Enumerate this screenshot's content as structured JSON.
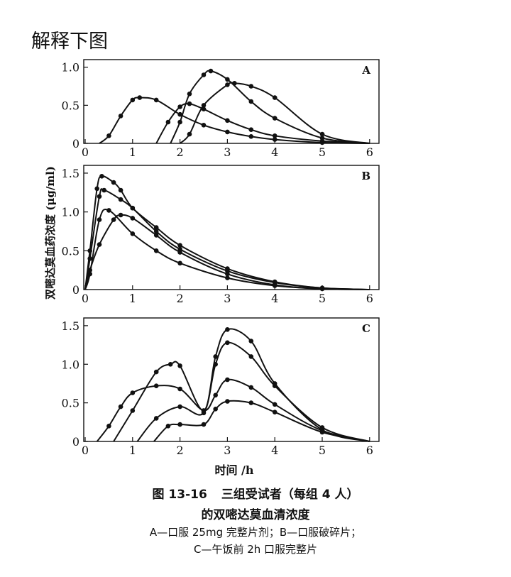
{
  "question": "解释下图",
  "caption": {
    "figure_number": "图 13-16",
    "title_line1": "三组受试者（每组 4 人）",
    "title_line2": "的双嘧达莫血清浓度",
    "legend_line1": "A—口服 25mg 完整片剂；B—口服破碎片；",
    "legend_line2": "C—午饭前 2h 口服完整片"
  },
  "chart_data": {
    "type": "line",
    "ylabel": "双嘧达莫血药浓度 (μg/ml)",
    "xlabel": "时间 /h",
    "x_ticks": [
      "0",
      "1",
      "2",
      "3",
      "4",
      "5",
      "6"
    ],
    "panels": [
      {
        "label": "A",
        "xlim": [
          0,
          6
        ],
        "ylim": [
          0,
          1.1
        ],
        "y_ticks": [
          "0",
          "0.5",
          "1.0"
        ],
        "series": [
          {
            "x": [
              0.3,
              0.5,
              0.75,
              1.0,
              1.15,
              1.5,
              2.0,
              2.5,
              3.0,
              3.5,
              4.0,
              5.0,
              6.0
            ],
            "y": [
              0,
              0.1,
              0.36,
              0.57,
              0.6,
              0.57,
              0.38,
              0.24,
              0.15,
              0.09,
              0.05,
              0.01,
              0
            ]
          },
          {
            "x": [
              1.5,
              1.75,
              2.0,
              2.2,
              2.5,
              3.0,
              3.5,
              4.0,
              5.0,
              6.0
            ],
            "y": [
              0,
              0.28,
              0.48,
              0.52,
              0.45,
              0.3,
              0.18,
              0.1,
              0.03,
              0
            ]
          },
          {
            "x": [
              1.8,
              2.0,
              2.2,
              2.5,
              2.65,
              3.0,
              3.5,
              4.0,
              5.0,
              6.0
            ],
            "y": [
              0,
              0.28,
              0.65,
              0.9,
              0.95,
              0.84,
              0.55,
              0.33,
              0.07,
              0
            ]
          },
          {
            "x": [
              2.0,
              2.2,
              2.5,
              3.0,
              3.15,
              3.5,
              4.0,
              5.0,
              6.0
            ],
            "y": [
              0,
              0.12,
              0.5,
              0.77,
              0.79,
              0.75,
              0.6,
              0.12,
              0
            ]
          }
        ]
      },
      {
        "label": "B",
        "xlim": [
          0,
          6
        ],
        "ylim": [
          0,
          1.6
        ],
        "y_ticks": [
          "0",
          "0.5",
          "1.0",
          "1.5"
        ],
        "series": [
          {
            "x": [
              0,
              0.1,
              0.25,
              0.35,
              0.6,
              0.75,
              1.0,
              1.5,
              2.0,
              3.0,
              4.0,
              5.0,
              6.0
            ],
            "y": [
              0,
              0.5,
              1.3,
              1.46,
              1.38,
              1.28,
              1.05,
              0.8,
              0.57,
              0.27,
              0.1,
              0.02,
              0
            ]
          },
          {
            "x": [
              0,
              0.1,
              0.3,
              0.4,
              0.75,
              1.0,
              1.5,
              2.0,
              3.0,
              4.0,
              5.0,
              6.0
            ],
            "y": [
              0,
              0.4,
              1.2,
              1.28,
              1.16,
              1.05,
              0.75,
              0.52,
              0.24,
              0.09,
              0.02,
              0
            ]
          },
          {
            "x": [
              0,
              0.1,
              0.3,
              0.5,
              1.0,
              1.5,
              2.0,
              3.0,
              4.0,
              5.0,
              6.0
            ],
            "y": [
              0,
              0.2,
              0.9,
              1.02,
              0.72,
              0.5,
              0.34,
              0.15,
              0.05,
              0.01,
              0
            ]
          },
          {
            "x": [
              0,
              0.1,
              0.3,
              0.6,
              0.75,
              1.0,
              1.5,
              2.0,
              3.0,
              4.0,
              5.0,
              6.0
            ],
            "y": [
              0,
              0.25,
              0.58,
              0.9,
              0.96,
              0.92,
              0.7,
              0.48,
              0.2,
              0.06,
              0.01,
              0
            ]
          }
        ]
      },
      {
        "label": "C",
        "xlim": [
          0,
          6
        ],
        "ylim": [
          0,
          1.6
        ],
        "y_ticks": [
          "0",
          "0.5",
          "1.0",
          "1.5"
        ],
        "series": [
          {
            "x": [
              0.25,
              0.5,
              0.75,
              1.0,
              1.5,
              2.0,
              2.5,
              2.75,
              3.0,
              3.5,
              4.0,
              5.0,
              6.0
            ],
            "y": [
              0,
              0.2,
              0.45,
              0.63,
              0.72,
              0.68,
              0.4,
              0.6,
              0.8,
              0.7,
              0.48,
              0.14,
              0
            ]
          },
          {
            "x": [
              0.6,
              1.0,
              1.5,
              1.8,
              2.0,
              2.5,
              2.75,
              3.0,
              3.5,
              4.0,
              5.0,
              6.0
            ],
            "y": [
              0,
              0.4,
              0.9,
              1.0,
              0.98,
              0.4,
              1.1,
              1.45,
              1.3,
              0.75,
              0.15,
              0
            ]
          },
          {
            "x": [
              1.1,
              1.5,
              2.0,
              2.5,
              2.75,
              3.0,
              3.5,
              4.0,
              5.0,
              6.0
            ],
            "y": [
              0,
              0.3,
              0.45,
              0.37,
              1.0,
              1.28,
              1.1,
              0.72,
              0.18,
              0
            ]
          },
          {
            "x": [
              1.45,
              1.75,
              2.0,
              2.5,
              2.75,
              3.0,
              3.5,
              4.0,
              5.0,
              6.0
            ],
            "y": [
              0,
              0.2,
              0.22,
              0.22,
              0.42,
              0.52,
              0.5,
              0.38,
              0.12,
              0
            ]
          }
        ]
      }
    ]
  }
}
